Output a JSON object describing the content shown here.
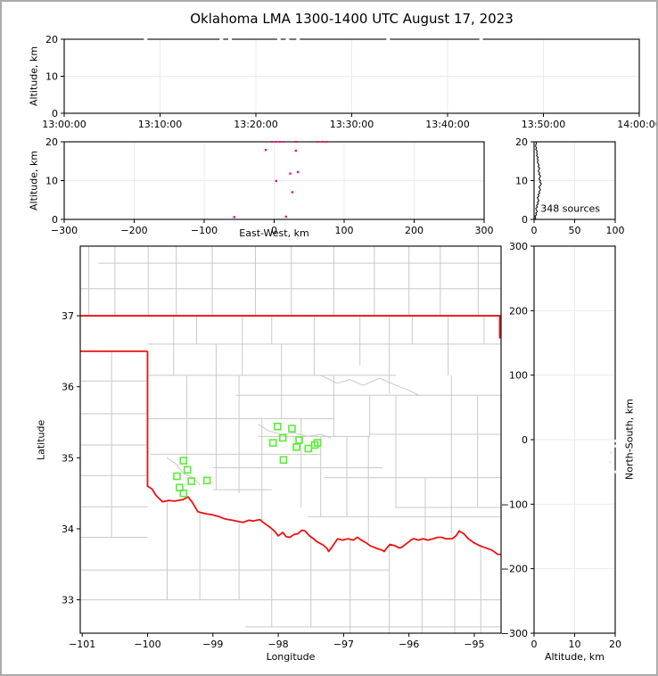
{
  "title": "Oklahoma LMA 1300-1400 UTC August 17, 2023",
  "colors": {
    "source_pink": "#ee1277",
    "station_green": "#57ee33",
    "state_border_red": "#ee1111",
    "county_gray": "#c9c9c9",
    "grid_gray": "#ebebeb",
    "spine_black": "#000000",
    "clipped_white": "#fafafa",
    "faint_dot": "#f0f0f0"
  },
  "chart_data": [
    {
      "type": "scatter",
      "name": "time-height",
      "ylabel": "Altitude, km",
      "xlim_minutes": [
        0,
        60
      ],
      "xtick_minutes": [
        0,
        10,
        20,
        30,
        40,
        50,
        60
      ],
      "xtick_labels": [
        "13:00:00",
        "13:10:00",
        "13:20:00",
        "13:30:00",
        "13:40:00",
        "13:50:00",
        "14:00:00"
      ],
      "ylim": [
        0,
        20
      ],
      "yticks": [
        0,
        10,
        20
      ],
      "ytick_labels": [
        "0",
        "10",
        "20"
      ],
      "grid": "light",
      "points_clipped_top_minutes": [
        8.5,
        16.4,
        17.3,
        22.4,
        23.3,
        24.4,
        33.8,
        43.5
      ]
    },
    {
      "type": "scatter",
      "name": "ew-height",
      "xlabel": "East-West, km",
      "ylabel": "Altitude, km",
      "xlim": [
        -300,
        300
      ],
      "xticks": [
        -300,
        -200,
        -100,
        0,
        100,
        200,
        300
      ],
      "xtick_labels": [
        "−300",
        "−200",
        "−100",
        "0",
        "100",
        "200",
        "300"
      ],
      "ylim": [
        0,
        20
      ],
      "yticks": [
        0,
        10,
        20
      ],
      "ytick_labels": [
        "0",
        "10",
        "20"
      ],
      "grid": "light",
      "points_ew_alt": [
        [
          -12,
          17.9
        ],
        [
          31,
          17.7
        ],
        [
          34,
          12.2
        ],
        [
          23,
          11.8
        ],
        [
          3,
          9.9
        ],
        [
          26,
          7.0
        ],
        [
          17,
          0.7
        ],
        [
          -57,
          0.6
        ]
      ],
      "points_clipped_top_ew": [
        -3,
        2,
        8,
        13,
        31,
        62,
        69,
        75
      ]
    },
    {
      "type": "line",
      "name": "altitude-histogram",
      "annotation": "348 sources",
      "annotation_xy": [
        8,
        2.0
      ],
      "xlim": [
        0,
        100
      ],
      "xticks": [
        0,
        50,
        100
      ],
      "xtick_labels": [
        "0",
        "50",
        "100"
      ],
      "ylim": [
        0,
        20
      ],
      "yticks": [
        0,
        10,
        20
      ],
      "ytick_labels": [
        "0",
        "10",
        "20"
      ],
      "grid": "light",
      "profile_alt_step": 0.4,
      "profile_counts": [
        1,
        2,
        1,
        3,
        2,
        4,
        3,
        2,
        4,
        3,
        5,
        4,
        6,
        5,
        4,
        6,
        5,
        7,
        6,
        8,
        7,
        6,
        8,
        9,
        7,
        8,
        6,
        7,
        8,
        6,
        7,
        5,
        6,
        7,
        5,
        6,
        5,
        4,
        5,
        4,
        5,
        3,
        4,
        3,
        4,
        2,
        3,
        2,
        2,
        3,
        2
      ]
    },
    {
      "type": "map-scatter",
      "name": "plan-view-map",
      "xlabel": "Longitude",
      "ylabel": "Latitude",
      "xlim": [
        -101.03,
        -94.59
      ],
      "ylim": [
        32.53,
        37.98
      ],
      "xticks": [
        -101,
        -100,
        -99,
        -98,
        -97,
        -96,
        -95
      ],
      "xtick_labels": [
        "−101",
        "−100",
        "−99",
        "−98",
        "−97",
        "−96",
        "−95"
      ],
      "yticks": [
        33,
        34,
        35,
        36,
        37
      ],
      "ytick_labels": [
        "33",
        "34",
        "35",
        "36",
        "37"
      ],
      "stations_lon_lat": [
        [
          -99.45,
          34.96
        ],
        [
          -99.39,
          34.83
        ],
        [
          -99.55,
          34.74
        ],
        [
          -99.33,
          34.67
        ],
        [
          -99.09,
          34.68
        ],
        [
          -99.51,
          34.58
        ],
        [
          -99.45,
          34.5
        ],
        [
          -98.01,
          35.44
        ],
        [
          -97.79,
          35.41
        ],
        [
          -98.08,
          35.21
        ],
        [
          -97.93,
          35.28
        ],
        [
          -97.68,
          35.25
        ],
        [
          -97.72,
          35.15
        ],
        [
          -97.54,
          35.13
        ],
        [
          -97.44,
          35.18
        ],
        [
          -97.4,
          35.21
        ],
        [
          -97.92,
          34.97
        ]
      ],
      "state_border_segments": [
        [
          [
            -101.03,
            37.0
          ],
          [
            -94.59,
            37.0
          ]
        ],
        [
          [
            -101.03,
            36.5
          ],
          [
            -100.0,
            36.5
          ]
        ],
        [
          [
            -100.0,
            36.5
          ],
          [
            -100.0,
            34.6
          ]
        ],
        [
          [
            -94.61,
            37.0
          ],
          [
            -94.61,
            36.68
          ]
        ]
      ],
      "red_river_lon_lat": [
        [
          -100.0,
          34.6
        ],
        [
          -99.93,
          34.56
        ],
        [
          -99.87,
          34.47
        ],
        [
          -99.77,
          34.38
        ],
        [
          -99.68,
          34.4
        ],
        [
          -99.59,
          34.39
        ],
        [
          -99.46,
          34.41
        ],
        [
          -99.38,
          34.45
        ],
        [
          -99.32,
          34.38
        ],
        [
          -99.23,
          34.24
        ],
        [
          -99.1,
          34.21
        ],
        [
          -99.02,
          34.2
        ],
        [
          -98.9,
          34.17
        ],
        [
          -98.82,
          34.14
        ],
        [
          -98.7,
          34.12
        ],
        [
          -98.54,
          34.09
        ],
        [
          -98.45,
          34.12
        ],
        [
          -98.38,
          34.11
        ],
        [
          -98.28,
          34.13
        ],
        [
          -98.23,
          34.09
        ],
        [
          -98.17,
          34.05
        ],
        [
          -98.11,
          34.01
        ],
        [
          -98.05,
          33.96
        ],
        [
          -98.0,
          33.9
        ],
        [
          -97.93,
          33.95
        ],
        [
          -97.88,
          33.89
        ],
        [
          -97.82,
          33.88
        ],
        [
          -97.76,
          33.92
        ],
        [
          -97.7,
          33.93
        ],
        [
          -97.64,
          33.98
        ],
        [
          -97.59,
          33.97
        ],
        [
          -97.52,
          33.9
        ],
        [
          -97.46,
          33.86
        ],
        [
          -97.41,
          33.82
        ],
        [
          -97.31,
          33.77
        ],
        [
          -97.25,
          33.72
        ],
        [
          -97.23,
          33.68
        ],
        [
          -97.18,
          33.74
        ],
        [
          -97.12,
          33.82
        ],
        [
          -97.09,
          33.86
        ],
        [
          -97.02,
          33.84
        ],
        [
          -96.93,
          33.86
        ],
        [
          -96.85,
          33.84
        ],
        [
          -96.79,
          33.88
        ],
        [
          -96.71,
          33.83
        ],
        [
          -96.65,
          33.8
        ],
        [
          -96.59,
          33.76
        ],
        [
          -96.48,
          33.72
        ],
        [
          -96.41,
          33.7
        ],
        [
          -96.38,
          33.68
        ],
        [
          -96.32,
          33.75
        ],
        [
          -96.29,
          33.78
        ],
        [
          -96.21,
          33.76
        ],
        [
          -96.15,
          33.73
        ],
        [
          -96.11,
          33.74
        ],
        [
          -96.04,
          33.79
        ],
        [
          -95.97,
          33.84
        ],
        [
          -95.93,
          33.86
        ],
        [
          -95.85,
          33.84
        ],
        [
          -95.79,
          33.86
        ],
        [
          -95.71,
          33.84
        ],
        [
          -95.63,
          33.86
        ],
        [
          -95.56,
          33.88
        ],
        [
          -95.5,
          33.88
        ],
        [
          -95.44,
          33.86
        ],
        [
          -95.34,
          33.86
        ],
        [
          -95.28,
          33.9
        ],
        [
          -95.23,
          33.97
        ],
        [
          -95.16,
          33.93
        ],
        [
          -95.09,
          33.86
        ],
        [
          -95.0,
          33.8
        ],
        [
          -94.91,
          33.76
        ],
        [
          -94.82,
          33.73
        ],
        [
          -94.73,
          33.7
        ],
        [
          -94.64,
          33.64
        ],
        [
          -94.59,
          33.64
        ]
      ],
      "county_h_lat_lon1_lon2": [
        [
          37.38,
          -101.03,
          -94.59
        ],
        [
          37.74,
          -100.75,
          -94.59
        ],
        [
          36.6,
          -100.0,
          -94.59
        ],
        [
          36.16,
          -100.0,
          -96.2
        ],
        [
          35.88,
          -98.65,
          -94.59
        ],
        [
          35.55,
          -100.0,
          -97.15
        ],
        [
          35.3,
          -98.3,
          -96.6
        ],
        [
          35.33,
          -96.6,
          -94.59
        ],
        [
          35.05,
          -99.95,
          -97.35
        ],
        [
          34.86,
          -99.0,
          -96.4
        ],
        [
          34.72,
          -97.3,
          -94.59
        ],
        [
          34.55,
          -99.0,
          -98.1
        ],
        [
          34.17,
          -97.55,
          -94.59
        ],
        [
          34.3,
          -96.2,
          -94.59
        ],
        [
          36.08,
          -101.03,
          -100.0
        ],
        [
          35.62,
          -101.03,
          -100.0
        ],
        [
          35.18,
          -101.03,
          -100.0
        ],
        [
          34.75,
          -101.03,
          -100.0
        ],
        [
          34.31,
          -101.03,
          -100.0
        ],
        [
          33.88,
          -101.03,
          -100.0
        ],
        [
          33.42,
          -101.03,
          -96.3
        ],
        [
          33.0,
          -101.03,
          -94.59
        ],
        [
          32.62,
          -98.5,
          -94.59
        ]
      ],
      "county_v_lon_lat1_lat2": [
        [
          -100.9,
          37.0,
          37.98
        ],
        [
          -100.5,
          37.0,
          37.98
        ],
        [
          -99.99,
          37.0,
          37.98
        ],
        [
          -99.56,
          37.0,
          37.98
        ],
        [
          -99.01,
          37.0,
          37.98
        ],
        [
          -98.35,
          37.0,
          37.98
        ],
        [
          -97.8,
          37.0,
          37.98
        ],
        [
          -97.15,
          37.0,
          37.98
        ],
        [
          -96.53,
          37.0,
          37.98
        ],
        [
          -96.0,
          37.0,
          37.98
        ],
        [
          -95.52,
          37.0,
          37.98
        ],
        [
          -94.94,
          37.0,
          37.98
        ],
        [
          -100.55,
          33.88,
          36.5
        ],
        [
          -99.6,
          36.16,
          37.0
        ],
        [
          -99.25,
          36.6,
          37.0
        ],
        [
          -98.95,
          34.55,
          36.6
        ],
        [
          -98.55,
          36.16,
          37.0
        ],
        [
          -98.1,
          36.6,
          37.0
        ],
        [
          -97.45,
          36.16,
          37.0
        ],
        [
          -96.75,
          36.3,
          37.0
        ],
        [
          -96.3,
          35.9,
          37.0
        ],
        [
          -95.95,
          36.6,
          37.0
        ],
        [
          -95.4,
          36.16,
          37.0
        ],
        [
          -94.85,
          36.6,
          37.0
        ],
        [
          -99.4,
          34.85,
          36.16
        ],
        [
          -98.6,
          34.5,
          36.16
        ],
        [
          -98.25,
          34.1,
          35.55
        ],
        [
          -97.95,
          35.55,
          36.6
        ],
        [
          -97.65,
          34.3,
          35.55
        ],
        [
          -97.35,
          34.17,
          35.3
        ],
        [
          -97.15,
          35.3,
          36.16
        ],
        [
          -96.95,
          34.17,
          35.3
        ],
        [
          -96.6,
          35.3,
          35.88
        ],
        [
          -96.62,
          33.8,
          35.3
        ],
        [
          -96.2,
          34.3,
          35.88
        ],
        [
          -95.75,
          33.86,
          34.72
        ],
        [
          -95.35,
          33.9,
          36.16
        ],
        [
          -94.95,
          34.3,
          35.88
        ],
        [
          -99.7,
          33.0,
          34.4
        ],
        [
          -99.2,
          33.0,
          34.22
        ],
        [
          -98.6,
          33.0,
          34.1
        ],
        [
          -98.1,
          32.62,
          34.02
        ],
        [
          -97.5,
          32.62,
          33.88
        ],
        [
          -96.9,
          32.53,
          33.85
        ],
        [
          -96.3,
          32.53,
          33.77
        ],
        [
          -95.8,
          32.53,
          33.85
        ],
        [
          -95.3,
          32.53,
          33.9
        ],
        [
          -94.9,
          32.53,
          33.77
        ]
      ],
      "county_polylines": [
        [
          [
            -97.35,
            36.16
          ],
          [
            -97.1,
            36.05
          ],
          [
            -96.9,
            36.1
          ],
          [
            -96.7,
            36.02
          ],
          [
            -96.45,
            36.12
          ],
          [
            -96.2,
            36.02
          ],
          [
            -96.0,
            35.95
          ],
          [
            -95.85,
            35.88
          ]
        ],
        [
          [
            -98.3,
            35.47
          ],
          [
            -98.15,
            35.38
          ],
          [
            -97.95,
            35.33
          ],
          [
            -97.75,
            35.35
          ],
          [
            -97.55,
            35.3
          ],
          [
            -97.35,
            35.33
          ],
          [
            -97.2,
            35.28
          ]
        ],
        [
          [
            -99.7,
            35.0
          ],
          [
            -99.55,
            34.9
          ],
          [
            -99.45,
            34.78
          ],
          [
            -99.3,
            34.72
          ],
          [
            -99.2,
            34.62
          ]
        ]
      ]
    },
    {
      "type": "scatter",
      "name": "ns-height",
      "xlabel": "Altitude, km",
      "ylabel_right": "North-South, km",
      "xlim": [
        0,
        20
      ],
      "xticks": [
        0,
        10,
        20
      ],
      "xtick_labels": [
        "0",
        "10",
        "20"
      ],
      "ylim": [
        -300,
        300
      ],
      "yticks": [
        300,
        200,
        100,
        0,
        -100,
        -200,
        -300
      ],
      "ytick_labels": [
        "300",
        "200",
        "100",
        "0",
        "−100",
        "−200",
        "−300"
      ],
      "grid": "light",
      "faint_points_alt_ns": [
        [
          20,
          -2
        ],
        [
          20,
          -10
        ],
        [
          20,
          -50
        ],
        [
          19,
          -20
        ],
        [
          19.5,
          1
        ],
        [
          18.8,
          -35
        ]
      ]
    }
  ]
}
